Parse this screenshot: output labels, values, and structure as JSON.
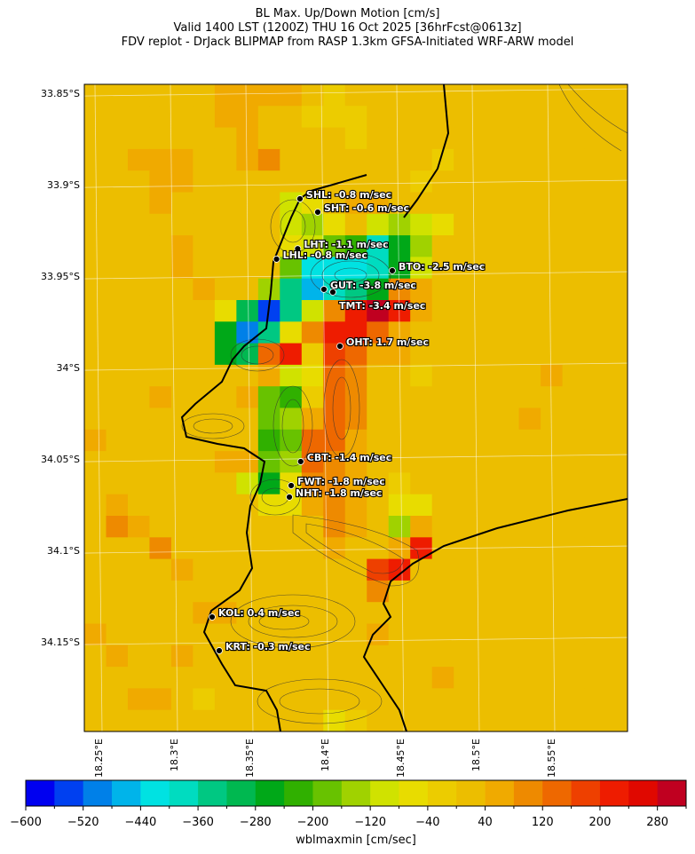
{
  "title": {
    "line1": "BL Max. Up/Down Motion [cm/s]",
    "line2": "Valid 1400 LST (1200Z) THU 16 Oct 2025 [36hrFcst@0613z]",
    "line3": "FDV replot - DrJack BLIPMAP from RASP 1.3km GFSA-Initiated WRF-ARW model"
  },
  "chart_data": {
    "type": "heatmap",
    "variable": "wblmaxmin",
    "colorbar_label": "wblmaxmin [cm/sec]",
    "extent": {
      "lon": [
        18.2406,
        18.6006
      ],
      "lat": [
        33.8451,
        34.199
      ]
    },
    "lat_ticks": [
      {
        "v": 33.85,
        "t": "33.85°S"
      },
      {
        "v": 33.9,
        "t": "33.9°S"
      },
      {
        "v": 33.95,
        "t": "33.95°S"
      },
      {
        "v": 34.0,
        "t": "34°S"
      },
      {
        "v": 34.05,
        "t": "34.05°S"
      },
      {
        "v": 34.1,
        "t": "34.1°S"
      },
      {
        "v": 34.15,
        "t": "34.15°S"
      }
    ],
    "lon_ticks": [
      {
        "v": 18.25,
        "t": "18.25°E"
      },
      {
        "v": 18.3,
        "t": "18.3°E"
      },
      {
        "v": 18.35,
        "t": "18.35°E"
      },
      {
        "v": 18.4,
        "t": "18.4°E"
      },
      {
        "v": 18.45,
        "t": "18.45°E"
      },
      {
        "v": 18.5,
        "t": "18.5°E"
      },
      {
        "v": 18.55,
        "t": "18.55°E"
      }
    ],
    "colorbar": {
      "min": -600,
      "max": 320,
      "step": 40,
      "tick_labels": [
        "−600",
        "−520",
        "−440",
        "−360",
        "−280",
        "−200",
        "−120",
        "−40",
        "40",
        "120",
        "200",
        "280"
      ],
      "colors": [
        "#0000f0",
        "#0040f0",
        "#0080e8",
        "#00b4ea",
        "#00e2e2",
        "#00dcc0",
        "#00c882",
        "#00b850",
        "#00a818",
        "#30b000",
        "#68c200",
        "#a0d200",
        "#d0e200",
        "#e8dc00",
        "#eccc00",
        "#ecbe00",
        "#f0aa00",
        "#ee8a00",
        "#ee6800",
        "#ee4000",
        "#ee1c00",
        "#e00800",
        "#c00020"
      ]
    },
    "grid": {
      "rows": 30,
      "cols": 25,
      "base": 20,
      "cells": [
        [
          0,
          6,
          60
        ],
        [
          0,
          7,
          60
        ],
        [
          0,
          8,
          60
        ],
        [
          0,
          9,
          60
        ],
        [
          0,
          11,
          -20
        ],
        [
          1,
          6,
          60
        ],
        [
          1,
          7,
          60
        ],
        [
          1,
          10,
          -20
        ],
        [
          1,
          11,
          -20
        ],
        [
          1,
          12,
          -20
        ],
        [
          2,
          7,
          60
        ],
        [
          2,
          12,
          -20
        ],
        [
          3,
          2,
          60
        ],
        [
          3,
          3,
          60
        ],
        [
          3,
          4,
          60
        ],
        [
          3,
          7,
          60
        ],
        [
          3,
          8,
          100
        ],
        [
          3,
          16,
          -20
        ],
        [
          4,
          3,
          60
        ],
        [
          4,
          4,
          60
        ],
        [
          4,
          15,
          -20
        ],
        [
          5,
          3,
          60
        ],
        [
          5,
          9,
          -100
        ],
        [
          5,
          10,
          -60
        ],
        [
          5,
          12,
          60
        ],
        [
          5,
          13,
          60
        ],
        [
          6,
          9,
          -100
        ],
        [
          6,
          10,
          -140
        ],
        [
          6,
          11,
          -60
        ],
        [
          6,
          13,
          -100
        ],
        [
          6,
          14,
          -140
        ],
        [
          6,
          15,
          -100
        ],
        [
          6,
          16,
          -60
        ],
        [
          7,
          4,
          60
        ],
        [
          7,
          9,
          -60
        ],
        [
          7,
          10,
          -100
        ],
        [
          7,
          11,
          -180
        ],
        [
          7,
          12,
          -220
        ],
        [
          7,
          13,
          -380
        ],
        [
          7,
          14,
          -260
        ],
        [
          7,
          15,
          -140
        ],
        [
          8,
          4,
          60
        ],
        [
          8,
          9,
          -180
        ],
        [
          8,
          10,
          -420
        ],
        [
          8,
          11,
          -420
        ],
        [
          8,
          12,
          -420
        ],
        [
          8,
          13,
          -380
        ],
        [
          8,
          14,
          -260
        ],
        [
          8,
          15,
          -100
        ],
        [
          9,
          5,
          60
        ],
        [
          9,
          8,
          -140
        ],
        [
          9,
          9,
          -360
        ],
        [
          9,
          10,
          -460
        ],
        [
          9,
          11,
          -380
        ],
        [
          9,
          12,
          -340
        ],
        [
          9,
          13,
          -260
        ],
        [
          9,
          14,
          100
        ],
        [
          9,
          15,
          60
        ],
        [
          10,
          6,
          -60
        ],
        [
          10,
          7,
          -300
        ],
        [
          10,
          8,
          -540
        ],
        [
          10,
          9,
          -340
        ],
        [
          10,
          10,
          -100
        ],
        [
          10,
          11,
          100
        ],
        [
          10,
          12,
          220
        ],
        [
          10,
          13,
          300
        ],
        [
          10,
          14,
          220
        ],
        [
          10,
          15,
          60
        ],
        [
          11,
          6,
          -260
        ],
        [
          11,
          7,
          -500
        ],
        [
          11,
          8,
          -340
        ],
        [
          11,
          9,
          -60
        ],
        [
          11,
          10,
          100
        ],
        [
          11,
          11,
          220
        ],
        [
          11,
          12,
          220
        ],
        [
          11,
          13,
          140
        ],
        [
          11,
          14,
          60
        ],
        [
          12,
          6,
          -260
        ],
        [
          12,
          7,
          -300
        ],
        [
          12,
          8,
          140
        ],
        [
          12,
          9,
          220
        ],
        [
          12,
          10,
          -20
        ],
        [
          12,
          11,
          180
        ],
        [
          12,
          12,
          140
        ],
        [
          12,
          13,
          60
        ],
        [
          12,
          14,
          60
        ],
        [
          13,
          8,
          60
        ],
        [
          13,
          9,
          -100
        ],
        [
          13,
          10,
          -60
        ],
        [
          13,
          11,
          140
        ],
        [
          13,
          12,
          100
        ],
        [
          13,
          15,
          -20
        ],
        [
          13,
          21,
          60
        ],
        [
          14,
          3,
          60
        ],
        [
          14,
          7,
          60
        ],
        [
          14,
          8,
          -180
        ],
        [
          14,
          9,
          -220
        ],
        [
          14,
          10,
          -20
        ],
        [
          14,
          11,
          140
        ],
        [
          14,
          12,
          100
        ],
        [
          15,
          8,
          -180
        ],
        [
          15,
          9,
          -140
        ],
        [
          15,
          10,
          60
        ],
        [
          15,
          11,
          140
        ],
        [
          15,
          12,
          100
        ],
        [
          15,
          20,
          60
        ],
        [
          16,
          0,
          60
        ],
        [
          16,
          8,
          -220
        ],
        [
          16,
          9,
          -180
        ],
        [
          16,
          10,
          140
        ],
        [
          16,
          11,
          140
        ],
        [
          16,
          12,
          60
        ],
        [
          17,
          6,
          60
        ],
        [
          17,
          7,
          60
        ],
        [
          17,
          8,
          -180
        ],
        [
          17,
          9,
          -140
        ],
        [
          17,
          10,
          140
        ],
        [
          17,
          11,
          100
        ],
        [
          17,
          12,
          60
        ],
        [
          18,
          7,
          -100
        ],
        [
          18,
          8,
          -260
        ],
        [
          18,
          9,
          -60
        ],
        [
          18,
          10,
          100
        ],
        [
          18,
          11,
          100
        ],
        [
          18,
          12,
          60
        ],
        [
          18,
          14,
          -20
        ],
        [
          19,
          1,
          60
        ],
        [
          19,
          8,
          -60
        ],
        [
          19,
          9,
          -60
        ],
        [
          19,
          10,
          60
        ],
        [
          19,
          11,
          100
        ],
        [
          19,
          12,
          60
        ],
        [
          19,
          14,
          -60
        ],
        [
          19,
          15,
          -60
        ],
        [
          20,
          1,
          100
        ],
        [
          20,
          2,
          60
        ],
        [
          20,
          11,
          100
        ],
        [
          20,
          12,
          60
        ],
        [
          20,
          14,
          -140
        ],
        [
          20,
          15,
          60
        ],
        [
          21,
          3,
          100
        ],
        [
          21,
          11,
          60
        ],
        [
          21,
          14,
          60
        ],
        [
          21,
          15,
          220
        ],
        [
          22,
          4,
          60
        ],
        [
          22,
          13,
          180
        ],
        [
          22,
          14,
          220
        ],
        [
          23,
          13,
          100
        ],
        [
          24,
          5,
          60
        ],
        [
          24,
          6,
          60
        ],
        [
          25,
          0,
          60
        ],
        [
          25,
          13,
          60
        ],
        [
          26,
          1,
          60
        ],
        [
          26,
          4,
          60
        ],
        [
          27,
          16,
          60
        ],
        [
          28,
          2,
          60
        ],
        [
          28,
          3,
          60
        ],
        [
          28,
          5,
          -20
        ],
        [
          29,
          11,
          -60
        ],
        [
          29,
          12,
          -20
        ]
      ]
    },
    "stations": [
      {
        "code": "SHL",
        "label": "SHL: -0.8 m/sec",
        "value": -0.8,
        "lon": 18.3835,
        "lat": 33.9077
      },
      {
        "code": "SHT",
        "label": "SHT: -0.6 m/sec",
        "value": -0.6,
        "lon": 18.3953,
        "lat": 33.915
      },
      {
        "code": "LHT",
        "label": "LHT: -1.1 m/sec",
        "value": -1.1,
        "lon": 18.382,
        "lat": 33.935
      },
      {
        "code": "LHL",
        "label": "LHL: -0.8 m/sec",
        "value": -0.8,
        "lon": 18.368,
        "lat": 33.9407
      },
      {
        "code": "BTO",
        "label": "BTO: -2.5 m/sec",
        "value": -2.5,
        "lon": 18.4447,
        "lat": 33.947
      },
      {
        "code": "GUT",
        "label": "GUT: -3.8 m/sec",
        "value": -3.8,
        "lon": 18.3994,
        "lat": 33.9572
      },
      {
        "code": "TMT",
        "label": "TMT: -3.4 m/sec",
        "value": -3.4,
        "lon": 18.4053,
        "lat": 33.9587
      },
      {
        "code": "OHT",
        "label": "OHT: 1.7 m/sec",
        "value": 1.7,
        "lon": 18.41,
        "lat": 33.9883
      },
      {
        "code": "CBT",
        "label": "CBT: -1.4 m/sec",
        "value": -1.4,
        "lon": 18.384,
        "lat": 34.0514
      },
      {
        "code": "FWT",
        "label": "FWT: -1.8 m/sec",
        "value": -1.8,
        "lon": 18.3777,
        "lat": 34.0645
      },
      {
        "code": "NHT",
        "label": "NHT: -1.8 m/sec",
        "value": -1.8,
        "lon": 18.3765,
        "lat": 34.0708
      },
      {
        "code": "KOL",
        "label": "KOL: 0.4 m/sec",
        "value": 0.4,
        "lon": 18.3253,
        "lat": 34.1364
      },
      {
        "code": "KRT",
        "label": "KRT: -0.3 m/sec",
        "value": -0.3,
        "lon": 18.33,
        "lat": 34.1548
      }
    ]
  }
}
